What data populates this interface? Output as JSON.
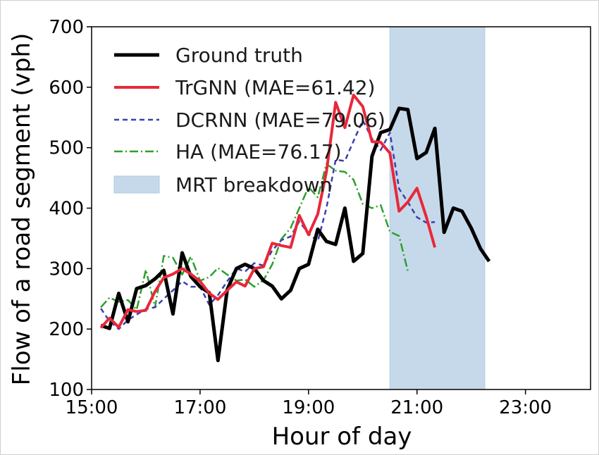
{
  "chart_data": {
    "type": "line",
    "xlabel": "Hour of day",
    "ylabel": "Flow of a road segment (vph)",
    "xlim": [
      15.0,
      24.2
    ],
    "ylim": [
      100,
      700
    ],
    "x_ticks": [
      {
        "value": 15,
        "label": "15:00"
      },
      {
        "value": 17,
        "label": "17:00"
      },
      {
        "value": 19,
        "label": "19:00"
      },
      {
        "value": 21,
        "label": "21:00"
      },
      {
        "value": 23,
        "label": "23:00"
      }
    ],
    "y_ticks": [
      100,
      200,
      300,
      400,
      500,
      600,
      700
    ],
    "grid": false,
    "legend_position": "upper-left",
    "shaded_region": {
      "name": "MRT breakdown",
      "x_start": 20.5,
      "x_end": 22.25,
      "color": "#c6d9ea"
    },
    "x": [
      15.17,
      15.33,
      15.5,
      15.67,
      15.83,
      16.0,
      16.17,
      16.33,
      16.5,
      16.67,
      16.83,
      17.0,
      17.17,
      17.33,
      17.5,
      17.67,
      17.83,
      18.0,
      18.17,
      18.33,
      18.5,
      18.67,
      18.83,
      19.0,
      19.17,
      19.33,
      19.5,
      19.67,
      19.83,
      20.0,
      20.17,
      20.33,
      20.5,
      20.67,
      20.83,
      21.0,
      21.17,
      21.33,
      21.5,
      21.67,
      21.83,
      22.0,
      22.17,
      22.33,
      22.5,
      22.67,
      22.83,
      23.0,
      23.17,
      23.33,
      23.5,
      23.67,
      23.83
    ],
    "series": [
      {
        "name": "Ground truth",
        "color": "#000000",
        "style": "solid",
        "width": 5,
        "values": [
          206,
          201,
          259,
          212,
          267,
          272,
          283,
          297,
          225,
          326,
          287,
          270,
          260,
          148,
          265,
          300,
          307,
          300,
          280,
          271,
          250,
          264,
          300,
          307,
          365,
          345,
          340,
          400,
          312,
          325,
          486,
          525,
          530,
          565,
          563,
          482,
          492,
          532,
          360,
          400,
          395,
          367,
          333,
          312,
          null,
          null,
          null,
          null,
          null,
          null,
          null,
          null,
          null
        ]
      },
      {
        "name": "TrGNN (MAE=61.42)",
        "color": "#e8283a",
        "style": "solid",
        "width": 4,
        "values": [
          202,
          218,
          203,
          232,
          229,
          231,
          262,
          285,
          291,
          300,
          291,
          279,
          259,
          249,
          264,
          278,
          271,
          300,
          303,
          342,
          338,
          335,
          388,
          356,
          390,
          460,
          575,
          533,
          587,
          568,
          510,
          509,
          491,
          395,
          410,
          433,
          386,
          335,
          null,
          null,
          null,
          null,
          null,
          null,
          null,
          null,
          null,
          null,
          null,
          null,
          null,
          null,
          null
        ]
      },
      {
        "name": "DCRNN (MAE=79.06)",
        "color": "#3b3fb0",
        "style": "dashed",
        "width": 2.5,
        "values": [
          234,
          213,
          200,
          215,
          224,
          233,
          236,
          250,
          264,
          279,
          270,
          270,
          240,
          256,
          279,
          300,
          295,
          309,
          305,
          330,
          347,
          353,
          378,
          358,
          345,
          400,
          480,
          478,
          511,
          545,
          515,
          496,
          525,
          432,
          410,
          385,
          376,
          377,
          null,
          null,
          null,
          null,
          null,
          null,
          null,
          null,
          null,
          null,
          null,
          null,
          null,
          null,
          null
        ]
      },
      {
        "name": "HA (MAE=76.17)",
        "color": "#2ca02c",
        "style": "dashdot",
        "width": 2.5,
        "values": [
          236,
          252,
          245,
          248,
          232,
          298,
          236,
          321,
          318,
          290,
          320,
          280,
          286,
          301,
          290,
          280,
          282,
          270,
          281,
          307,
          349,
          367,
          400,
          435,
          418,
          473,
          462,
          460,
          447,
          407,
          400,
          405,
          361,
          354,
          296,
          null,
          null,
          null,
          null,
          null,
          null,
          null,
          null,
          null,
          null,
          null,
          null,
          null,
          null,
          null,
          null,
          null,
          null
        ]
      }
    ]
  }
}
